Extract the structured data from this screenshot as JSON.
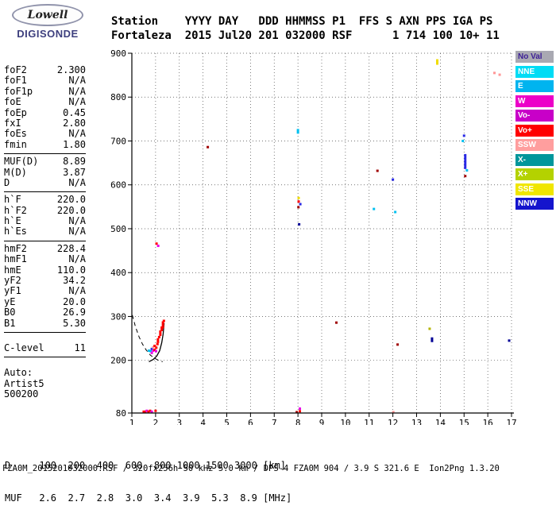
{
  "logo": {
    "name": "Lowell",
    "subname": "DIGISONDE"
  },
  "header": {
    "line1": "Station    YYYY DAY   DDD HHMMSS P1  FFS S AXN PPS IGA PS",
    "line2": "Fortaleza  2015 Jul20 201 032000 RSF      1 714 100 10+ 11"
  },
  "params": {
    "groups": [
      {
        "rows": [
          [
            "foF2",
            "2.300"
          ],
          [
            "foF1",
            "N/A"
          ],
          [
            "foF1p",
            "N/A"
          ],
          [
            "foE",
            "N/A"
          ],
          [
            "foEp",
            "0.45"
          ],
          [
            "fxI",
            "2.80"
          ],
          [
            "foEs",
            "N/A"
          ],
          [
            "fmin",
            "1.80"
          ]
        ]
      },
      {
        "rows": [
          [
            "MUF(D)",
            "8.89"
          ],
          [
            "M(D)",
            "3.87"
          ],
          [
            "D",
            "N/A"
          ]
        ]
      },
      {
        "rows": [
          [
            "h`F",
            "220.0"
          ],
          [
            "h`F2",
            "220.0"
          ],
          [
            "h`E",
            "N/A"
          ],
          [
            "h`Es",
            "N/A"
          ]
        ]
      },
      {
        "rows": [
          [
            "hmF2",
            "228.4"
          ],
          [
            "hmF1",
            "N/A"
          ],
          [
            "hmE",
            "110.0"
          ],
          [
            "yF2",
            "34.2"
          ],
          [
            "yF1",
            "N/A"
          ],
          [
            "yE",
            "20.0"
          ],
          [
            "B0",
            "26.9"
          ],
          [
            "B1",
            "5.30"
          ]
        ]
      },
      {
        "rows": [
          [
            "C-level",
            "11"
          ]
        ]
      },
      {
        "rows": [
          [
            "Auto:",
            ""
          ],
          [
            "Artist5",
            ""
          ],
          [
            "500200",
            ""
          ]
        ]
      }
    ]
  },
  "legend": {
    "items": [
      {
        "label": "No Val",
        "bg": "#a9a9b2",
        "fg": "#3c1e96"
      },
      {
        "label": "NNE",
        "bg": "#00dcf5",
        "fg": "#ffffff"
      },
      {
        "label": "E",
        "bg": "#00b4ef",
        "fg": "#ffffff"
      },
      {
        "label": "W",
        "bg": "#ec00c8",
        "fg": "#ffffff"
      },
      {
        "label": "Vo-",
        "bg": "#c800c8",
        "fg": "#ffffff"
      },
      {
        "label": "Vo+",
        "bg": "#ff0000",
        "fg": "#ffffff"
      },
      {
        "label": "SSW",
        "bg": "#ff9e9e",
        "fg": "#ffffff"
      },
      {
        "label": "X-",
        "bg": "#00969b",
        "fg": "#ffffff"
      },
      {
        "label": "X+",
        "bg": "#b4d200",
        "fg": "#ffffff"
      },
      {
        "label": "SSE",
        "bg": "#f0e600",
        "fg": "#ffffff"
      },
      {
        "label": "NNW",
        "bg": "#1414cd",
        "fg": "#ffffff"
      }
    ]
  },
  "chart_data": {
    "type": "scatter",
    "title": "",
    "xlabel": "[MHz]",
    "ylabel": "[km]",
    "xlim": [
      1,
      17.2
    ],
    "ylim": [
      80,
      900
    ],
    "grid": true,
    "legend_position": "right",
    "x_ticks": [
      1,
      2,
      3,
      4,
      5,
      6,
      7,
      8,
      9,
      10,
      11,
      12,
      13,
      14,
      15,
      16,
      17
    ],
    "y_ticks": [
      80,
      200,
      300,
      400,
      500,
      600,
      700,
      800,
      900
    ],
    "palette": {
      "red": "#ff0000",
      "magenta": "#e800e8",
      "cyan": "#00c0f0",
      "blue": "#2828e6",
      "navy": "#000096",
      "yellow": "#f0dc00",
      "salmon": "#ff9696",
      "maroon": "#a00000",
      "olive": "#b4b400"
    },
    "points": [
      {
        "x": 1.72,
        "y": 222,
        "c": "cyan"
      },
      {
        "x": 1.79,
        "y": 221,
        "c": "cyan"
      },
      {
        "x": 1.84,
        "y": 226,
        "c": "blue"
      },
      {
        "x": 1.84,
        "y": 217,
        "c": "magenta"
      },
      {
        "x": 1.9,
        "y": 222,
        "c": "magenta"
      },
      {
        "x": 1.9,
        "y": 230,
        "c": "salmon"
      },
      {
        "x": 1.96,
        "y": 224,
        "c": "red"
      },
      {
        "x": 1.96,
        "y": 233,
        "c": "red"
      },
      {
        "x": 2.02,
        "y": 221,
        "c": "magenta"
      },
      {
        "x": 2.03,
        "y": 229,
        "c": "red"
      },
      {
        "x": 2.08,
        "y": 237,
        "c": "red"
      },
      {
        "x": 2.1,
        "y": 245,
        "c": "red",
        "h": 6
      },
      {
        "x": 2.15,
        "y": 253,
        "c": "red"
      },
      {
        "x": 2.2,
        "y": 262,
        "c": "red",
        "h": 7
      },
      {
        "x": 2.26,
        "y": 272,
        "c": "red",
        "h": 6
      },
      {
        "x": 2.31,
        "y": 281,
        "c": "red",
        "h": 9
      },
      {
        "x": 2.35,
        "y": 290,
        "c": "red"
      },
      {
        "x": 2.04,
        "y": 466,
        "c": "red"
      },
      {
        "x": 2.11,
        "y": 461,
        "c": "magenta"
      },
      {
        "x": 1.5,
        "y": 83,
        "c": "red"
      },
      {
        "x": 1.57,
        "y": 83,
        "c": "red"
      },
      {
        "x": 1.63,
        "y": 85,
        "c": "magenta"
      },
      {
        "x": 1.7,
        "y": 83,
        "c": "red"
      },
      {
        "x": 1.77,
        "y": 85,
        "c": "red"
      },
      {
        "x": 1.84,
        "y": 83,
        "c": "magenta"
      },
      {
        "x": 2.0,
        "y": 85,
        "c": "red"
      },
      {
        "x": 7.95,
        "y": 82,
        "c": "maroon"
      },
      {
        "x": 8.08,
        "y": 90,
        "c": "magenta"
      },
      {
        "x": 8.08,
        "y": 84,
        "c": "red"
      },
      {
        "x": 12.02,
        "y": 82,
        "c": "salmon"
      },
      {
        "x": 8.0,
        "y": 722,
        "c": "cyan",
        "h": 6
      },
      {
        "x": 4.2,
        "y": 686,
        "c": "maroon"
      },
      {
        "x": 13.87,
        "y": 880,
        "c": "yellow",
        "h": 7
      },
      {
        "x": 16.28,
        "y": 855,
        "c": "salmon"
      },
      {
        "x": 16.5,
        "y": 851,
        "c": "salmon"
      },
      {
        "x": 15.0,
        "y": 712,
        "c": "blue"
      },
      {
        "x": 14.95,
        "y": 700,
        "c": "cyan"
      },
      {
        "x": 15.05,
        "y": 663,
        "c": "blue",
        "h": 8
      },
      {
        "x": 15.05,
        "y": 646,
        "c": "blue",
        "h": 11
      },
      {
        "x": 15.12,
        "y": 633,
        "c": "cyan"
      },
      {
        "x": 15.05,
        "y": 620,
        "c": "maroon"
      },
      {
        "x": 11.35,
        "y": 632,
        "c": "maroon"
      },
      {
        "x": 12.0,
        "y": 612,
        "c": "blue"
      },
      {
        "x": 8.03,
        "y": 570,
        "c": "yellow"
      },
      {
        "x": 8.03,
        "y": 562,
        "c": "red"
      },
      {
        "x": 8.1,
        "y": 556,
        "c": "blue"
      },
      {
        "x": 8.02,
        "y": 549,
        "c": "maroon"
      },
      {
        "x": 8.05,
        "y": 510,
        "c": "navy"
      },
      {
        "x": 11.2,
        "y": 545,
        "c": "cyan"
      },
      {
        "x": 12.1,
        "y": 538,
        "c": "cyan"
      },
      {
        "x": 9.62,
        "y": 286,
        "c": "maroon"
      },
      {
        "x": 13.55,
        "y": 272,
        "c": "olive"
      },
      {
        "x": 13.65,
        "y": 247,
        "c": "navy",
        "h": 6
      },
      {
        "x": 16.9,
        "y": 245,
        "c": "navy"
      },
      {
        "x": 12.2,
        "y": 236,
        "c": "maroon"
      }
    ],
    "profile_dashed": [
      [
        1.02,
        303
      ],
      [
        1.15,
        277
      ],
      [
        1.3,
        254
      ],
      [
        1.45,
        237
      ],
      [
        1.6,
        224
      ],
      [
        1.78,
        212
      ],
      [
        1.95,
        205
      ],
      [
        2.12,
        200
      ],
      [
        2.3,
        197
      ]
    ],
    "trace_solid": [
      [
        1.72,
        197
      ],
      [
        1.9,
        202
      ],
      [
        2.05,
        210
      ],
      [
        2.17,
        222
      ],
      [
        2.26,
        240
      ],
      [
        2.32,
        260
      ],
      [
        2.36,
        285
      ]
    ]
  },
  "bottom": {
    "d_line": "D     100  200  400  600  800 1000 1500 3000 [km]",
    "muf_line": "MUF   2.6  2.7  2.8  3.0  3.4  3.9  5.3  8.9 [MHz]"
  },
  "footer": {
    "text": "FZA0M_2015201032000.RSF / 320fx256h 50 kHz 5.0 km / DPS-4 FZA0M 904 / 3.9 S 321.6 E  Ion2Png 1.3.20"
  }
}
